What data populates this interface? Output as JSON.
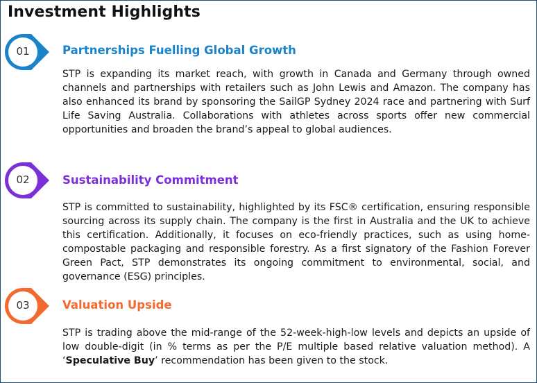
{
  "title": "Investment Highlights",
  "sections": [
    {
      "number": "01",
      "heading": "Partnerships Fuelling Global Growth",
      "color": "#1b84c8",
      "body": "STP is expanding its market reach, with growth in Canada and Germany through owned channels and partnerships with retailers such as John Lewis and Amazon. The company has also enhanced its brand by sponsoring the SailGP Sydney 2024 race and partnering with Surf Life Saving Australia. Collaborations with athletes across sports offer new commercial opportunities and broaden the brand’s appeal to global audiences."
    },
    {
      "number": "02",
      "heading": "Sustainability Commitment",
      "color": "#7b2fd6",
      "body": "STP is committed to sustainability, highlighted by its FSC® certification, ensuring responsible sourcing across its supply chain. The company is the first in Australia and the UK to achieve this certification. Additionally, it focuses on eco-friendly practices, such as using home-compostable packaging and responsible forestry. As a first signatory of the Fashion Forever Green Pact, STP demonstrates its ongoing commitment to environmental, social, and governance (ESG) principles."
    },
    {
      "number": "03",
      "heading": "Valuation Upside",
      "color": "#f26a2e",
      "body_parts": {
        "before": "STP is trading above the mid-range of the 52-week-high-low levels and depicts an upside of low double-digit (in % terms as per the P/E multiple based relative valuation method). A ‘",
        "bold": "Speculative Buy",
        "after": "’ recommendation has been given to the stock."
      }
    }
  ]
}
